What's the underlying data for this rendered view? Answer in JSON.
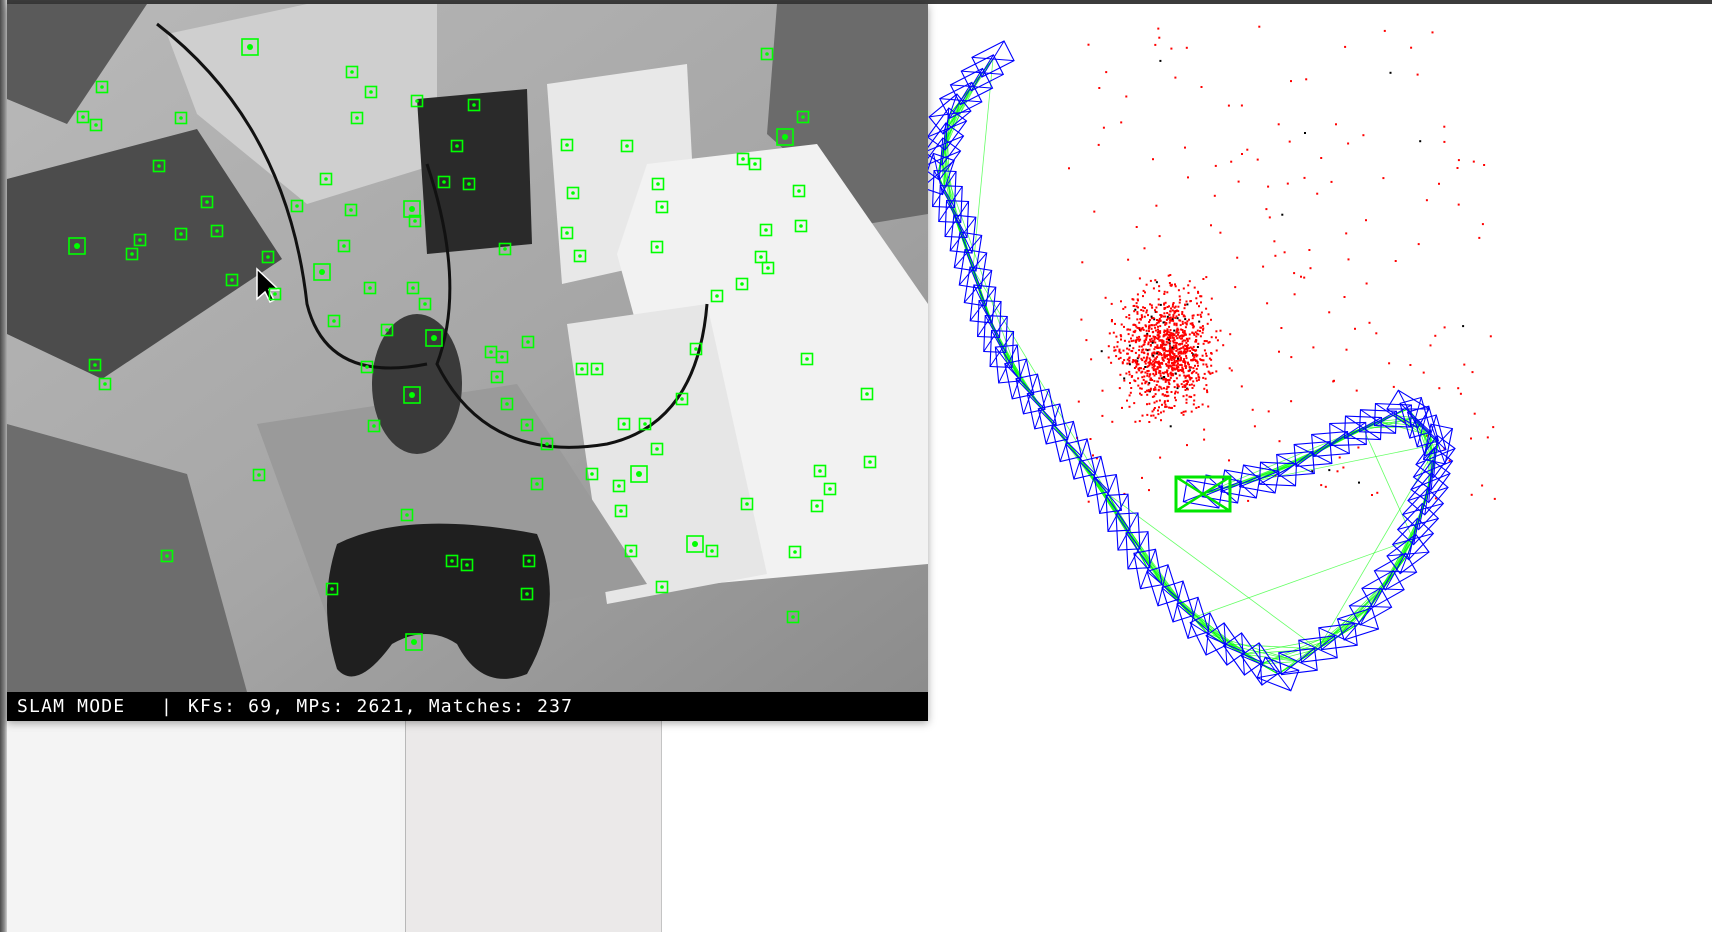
{
  "frame_viewer": {
    "status_mode": "SLAM MODE",
    "status_separator": "|",
    "status_stats": "KFs: 69, MPs: 2621, Matches: 237",
    "feature_color": "#00ff00"
  },
  "map_viewer": {
    "map_point_color": "#ff0000",
    "reference_point_color": "#000000",
    "keyframe_color": "#0000ff",
    "covisibility_color": "#00ff00",
    "current_camera_color": "#00e600"
  }
}
